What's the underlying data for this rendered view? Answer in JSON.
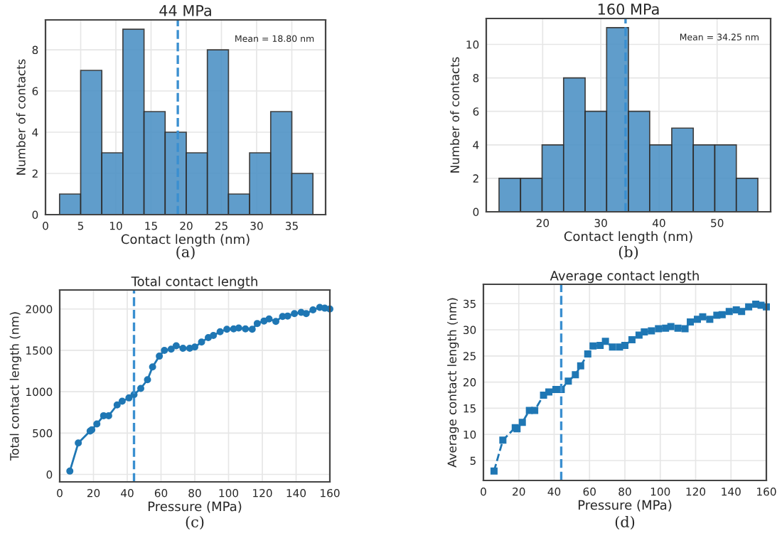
{
  "chart_data": [
    {
      "type": "histogram",
      "title": "44 MPa",
      "xlabel": "Contact length (nm)",
      "ylabel": "Number of contacts",
      "bins": [
        2,
        5,
        8,
        11,
        14,
        17,
        20,
        23,
        26,
        29,
        32,
        35,
        38
      ],
      "values": [
        1,
        7,
        3,
        9,
        5,
        4,
        3,
        8,
        1,
        3,
        5,
        2
      ],
      "color": "#4f93c6",
      "xlim": [
        0,
        39.8
      ],
      "xticks": [
        0,
        5,
        10,
        15,
        20,
        25,
        30,
        35
      ],
      "ylim": [
        0,
        9.45
      ],
      "yticks": [
        0,
        2,
        4,
        6,
        8
      ],
      "ref_lines": [
        {
          "axis": "x",
          "value": 18.8,
          "color": "#3a8fd0",
          "line_style": "dashed"
        }
      ],
      "annotations": [
        "Mean = 18.80 nm",
        "(a)"
      ],
      "grid": true
    },
    {
      "type": "histogram",
      "title": "160 MPa",
      "xlabel": "Contact length (nm)",
      "ylabel": "Number of contacts",
      "bins": [
        12.5,
        16.2,
        19.9,
        23.6,
        27.3,
        31.0,
        34.75,
        38.4,
        42.2,
        45.9,
        49.6,
        53.3,
        57.0
      ],
      "values": [
        2,
        2,
        4,
        8,
        6,
        11,
        6,
        4,
        5,
        4,
        4,
        2
      ],
      "color": "#4f93c6",
      "xlim": [
        10.3,
        59.2
      ],
      "xticks": [
        20,
        30,
        40,
        50
      ],
      "ylim": [
        0,
        11.55
      ],
      "yticks": [
        0,
        2,
        4,
        6,
        8,
        10
      ],
      "ref_lines": [
        {
          "axis": "x",
          "value": 34.25,
          "color": "#3a8fd0",
          "line_style": "dashed"
        }
      ],
      "annotations": [
        "Mean = 34.25 nm",
        "(b)"
      ],
      "grid": true
    },
    {
      "type": "line",
      "title": "Total contact length",
      "xlabel": "Pressure (MPa)",
      "ylabel": "Total contact length (nm)",
      "x": [
        6,
        11,
        18,
        19,
        22,
        26,
        29,
        34,
        37,
        41,
        44,
        48,
        52,
        55,
        59,
        62,
        66,
        69,
        73,
        77,
        80,
        84,
        88,
        91,
        95,
        99,
        103,
        106,
        110,
        114,
        117,
        121,
        124,
        128,
        132,
        135,
        139,
        143,
        146,
        150,
        154,
        157,
        160
      ],
      "series": [
        {
          "color": "#1f77b4",
          "values": [
            40,
            380,
            525,
            540,
            610,
            710,
            710,
            840,
            885,
            925,
            965,
            1040,
            1145,
            1300,
            1430,
            1500,
            1515,
            1555,
            1525,
            1525,
            1540,
            1600,
            1655,
            1680,
            1725,
            1755,
            1760,
            1770,
            1760,
            1755,
            1825,
            1855,
            1880,
            1850,
            1910,
            1915,
            1945,
            1960,
            1945,
            1990,
            2020,
            2010,
            2000
          ]
        }
      ],
      "marker": "circle",
      "line_style": "solid",
      "xlim": [
        0,
        160
      ],
      "xticks": [
        0,
        20,
        40,
        60,
        80,
        100,
        120,
        140,
        160
      ],
      "ylim": [
        -90,
        2230
      ],
      "yticks": [
        0,
        500,
        1000,
        1500,
        2000
      ],
      "ref_lines": [
        {
          "axis": "x",
          "value": 44,
          "color": "#3a8fd0",
          "line_style": "dashed"
        }
      ],
      "annotations": [
        "(c)"
      ],
      "grid": true
    },
    {
      "type": "line",
      "title": "Average contact length",
      "xlabel": "Pressure (MPa)",
      "ylabel": "Average contact length (nm)",
      "x": [
        6,
        11,
        18,
        19,
        22,
        26,
        29,
        34,
        37,
        41,
        44,
        48,
        52,
        55,
        59,
        62,
        66,
        69,
        73,
        77,
        80,
        84,
        88,
        91,
        95,
        99,
        103,
        106,
        110,
        114,
        117,
        121,
        124,
        128,
        132,
        135,
        139,
        143,
        146,
        150,
        154,
        157,
        160
      ],
      "series": [
        {
          "color": "#1f77b4",
          "values": [
            3.0,
            8.9,
            11.3,
            11.1,
            12.3,
            14.6,
            14.6,
            17.5,
            18.1,
            18.6,
            18.6,
            20.2,
            21.4,
            23.1,
            25.4,
            26.9,
            27.0,
            27.8,
            26.7,
            26.7,
            27.0,
            28.1,
            29.0,
            29.6,
            29.8,
            30.2,
            30.3,
            30.6,
            30.3,
            30.2,
            31.5,
            32.0,
            32.5,
            32.0,
            32.8,
            32.9,
            33.5,
            33.8,
            33.5,
            34.4,
            34.9,
            34.7,
            34.4
          ]
        }
      ],
      "marker": "square",
      "line_style": "dashed",
      "xlim": [
        0,
        160
      ],
      "xticks": [
        0,
        20,
        40,
        60,
        80,
        100,
        120,
        140,
        160
      ],
      "ylim": [
        1.2,
        38.7
      ],
      "yticks": [
        5,
        10,
        15,
        20,
        25,
        30,
        35
      ],
      "ref_lines": [
        {
          "axis": "x",
          "value": 44,
          "color": "#3a8fd0",
          "line_style": "dashed"
        }
      ],
      "annotations": [
        "(d)"
      ],
      "grid": true
    }
  ]
}
